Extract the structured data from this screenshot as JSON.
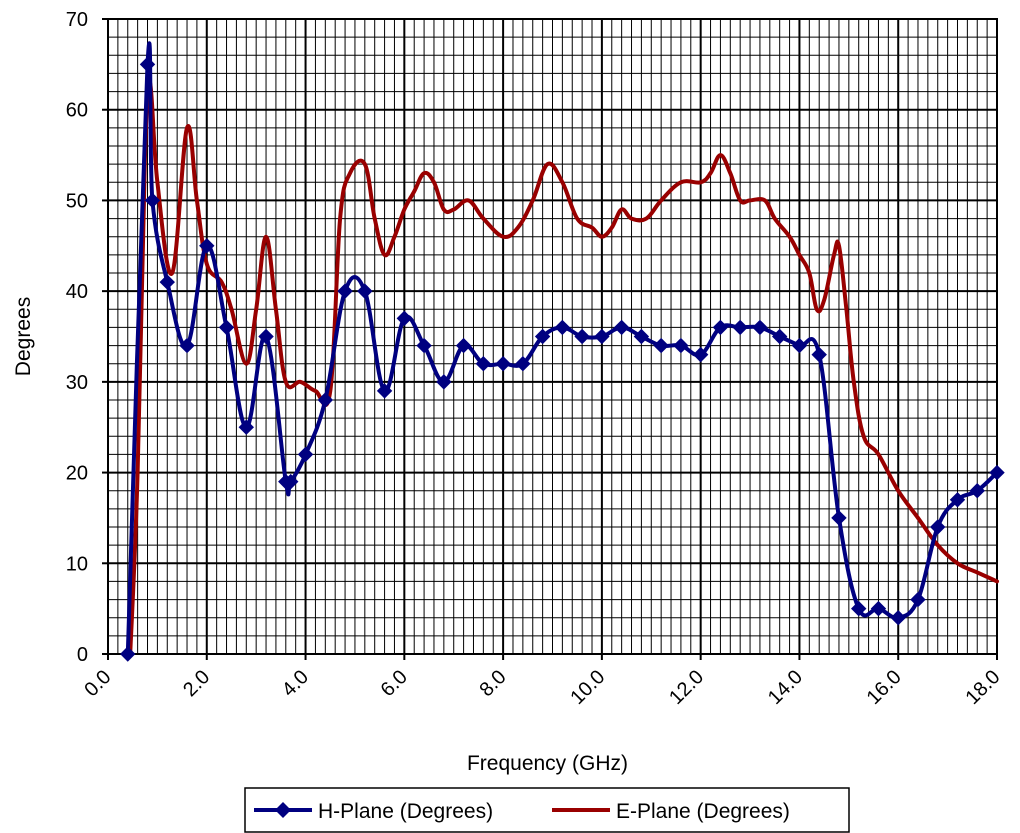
{
  "chart_data": {
    "type": "line",
    "title": "",
    "xlabel": "Frequency (GHz)",
    "ylabel": "Degrees",
    "xlim": [
      0,
      18
    ],
    "ylim": [
      0,
      70
    ],
    "x_major_ticks": [
      "0.0",
      "2.0",
      "4.0",
      "6.0",
      "8.0",
      "10.0",
      "12.0",
      "14.0",
      "16.0",
      "18.0"
    ],
    "y_major_ticks": [
      "0",
      "10",
      "20",
      "30",
      "40",
      "50",
      "60",
      "70"
    ],
    "grid": true,
    "legend_position": "bottom",
    "series": [
      {
        "name": "H-Plane (Degrees)",
        "color": "#000080",
        "marker": "diamond",
        "x": [
          0.4,
          0.8,
          0.9,
          1.2,
          1.6,
          2.0,
          2.4,
          2.8,
          3.2,
          3.6,
          3.7,
          4.0,
          4.4,
          4.8,
          5.2,
          5.6,
          6.0,
          6.4,
          6.8,
          7.2,
          7.6,
          8.0,
          8.4,
          8.8,
          9.2,
          9.6,
          10.0,
          10.4,
          10.8,
          11.2,
          11.6,
          12.0,
          12.4,
          12.8,
          13.2,
          13.6,
          14.0,
          14.4,
          14.8,
          15.2,
          15.6,
          16.0,
          16.4,
          16.8,
          17.2,
          17.6,
          18.0
        ],
        "y": [
          0,
          65,
          50,
          41,
          34,
          45,
          36,
          25,
          35,
          19,
          19,
          22,
          28,
          40,
          40,
          29,
          37,
          34,
          30,
          34,
          32,
          32,
          32,
          35,
          36,
          35,
          35,
          36,
          35,
          34,
          34,
          33,
          36,
          36,
          36,
          35,
          34,
          33,
          15,
          5,
          5,
          4,
          6,
          14,
          17,
          18,
          20
        ]
      },
      {
        "name": "E-Plane (Degrees)",
        "color": "#990000",
        "marker": "none",
        "x": [
          0.45,
          0.6,
          0.75,
          0.85,
          1.0,
          1.3,
          1.6,
          1.8,
          2.0,
          2.3,
          2.5,
          2.8,
          3.0,
          3.2,
          3.4,
          3.6,
          3.9,
          4.2,
          4.5,
          4.7,
          4.9,
          5.2,
          5.4,
          5.6,
          5.8,
          6.0,
          6.2,
          6.4,
          6.6,
          6.8,
          7.0,
          7.3,
          7.6,
          8.0,
          8.3,
          8.6,
          8.9,
          9.2,
          9.5,
          9.8,
          10.0,
          10.2,
          10.4,
          10.6,
          10.9,
          11.2,
          11.6,
          12.0,
          12.2,
          12.4,
          12.6,
          12.8,
          13.0,
          13.3,
          13.5,
          13.8,
          14.0,
          14.2,
          14.35,
          14.5,
          14.7,
          14.8,
          14.95,
          15.1,
          15.3,
          15.6,
          16.0,
          16.4,
          16.8,
          17.2,
          17.6,
          18.0
        ],
        "y": [
          0,
          20,
          55,
          63,
          52,
          42,
          58,
          50,
          43,
          41,
          38,
          32,
          38,
          46,
          38,
          30,
          30,
          29,
          29,
          48,
          53,
          54,
          48,
          44,
          46,
          49,
          51,
          53,
          52,
          49,
          49,
          50,
          48,
          46,
          47,
          50,
          54,
          52,
          48,
          47,
          46,
          47,
          49,
          48,
          48,
          50,
          52,
          52,
          53,
          55,
          53,
          50,
          50,
          50,
          48,
          46,
          44,
          42,
          38,
          39,
          44,
          45,
          38,
          30,
          24,
          22,
          18,
          15,
          12,
          10,
          9,
          8
        ]
      }
    ]
  }
}
